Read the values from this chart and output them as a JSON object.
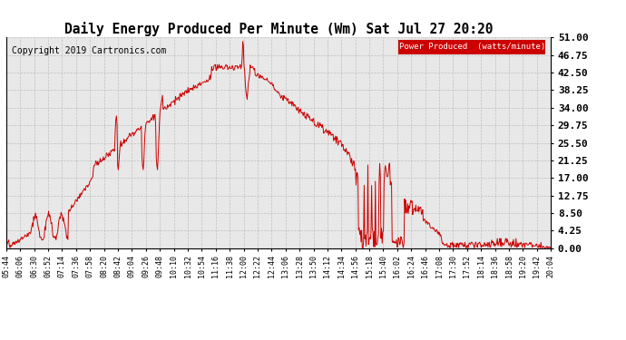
{
  "title": "Daily Energy Produced Per Minute (Wm) Sat Jul 27 20:20",
  "copyright": "Copyright 2019 Cartronics.com",
  "legend_label": "Power Produced  (watts/minute)",
  "legend_bg": "#cc0000",
  "legend_fg": "#ffffff",
  "line_color": "#cc0000",
  "bg_color": "#ffffff",
  "plot_bg": "#e8e8e8",
  "grid_color": "#bbbbbb",
  "yticks": [
    0.0,
    4.25,
    8.5,
    12.75,
    17.0,
    21.25,
    25.5,
    29.75,
    34.0,
    38.25,
    42.5,
    46.75,
    51.0
  ],
  "ylim": [
    0,
    51
  ],
  "xtick_labels": [
    "05:44",
    "06:06",
    "06:30",
    "06:52",
    "07:14",
    "07:36",
    "07:58",
    "08:20",
    "08:42",
    "09:04",
    "09:26",
    "09:48",
    "10:10",
    "10:32",
    "10:54",
    "11:16",
    "11:38",
    "12:00",
    "12:22",
    "12:44",
    "13:06",
    "13:28",
    "13:50",
    "14:12",
    "14:34",
    "14:56",
    "15:18",
    "15:40",
    "16:02",
    "16:24",
    "16:46",
    "17:08",
    "17:30",
    "17:52",
    "18:14",
    "18:36",
    "18:58",
    "19:20",
    "19:42",
    "20:04"
  ]
}
